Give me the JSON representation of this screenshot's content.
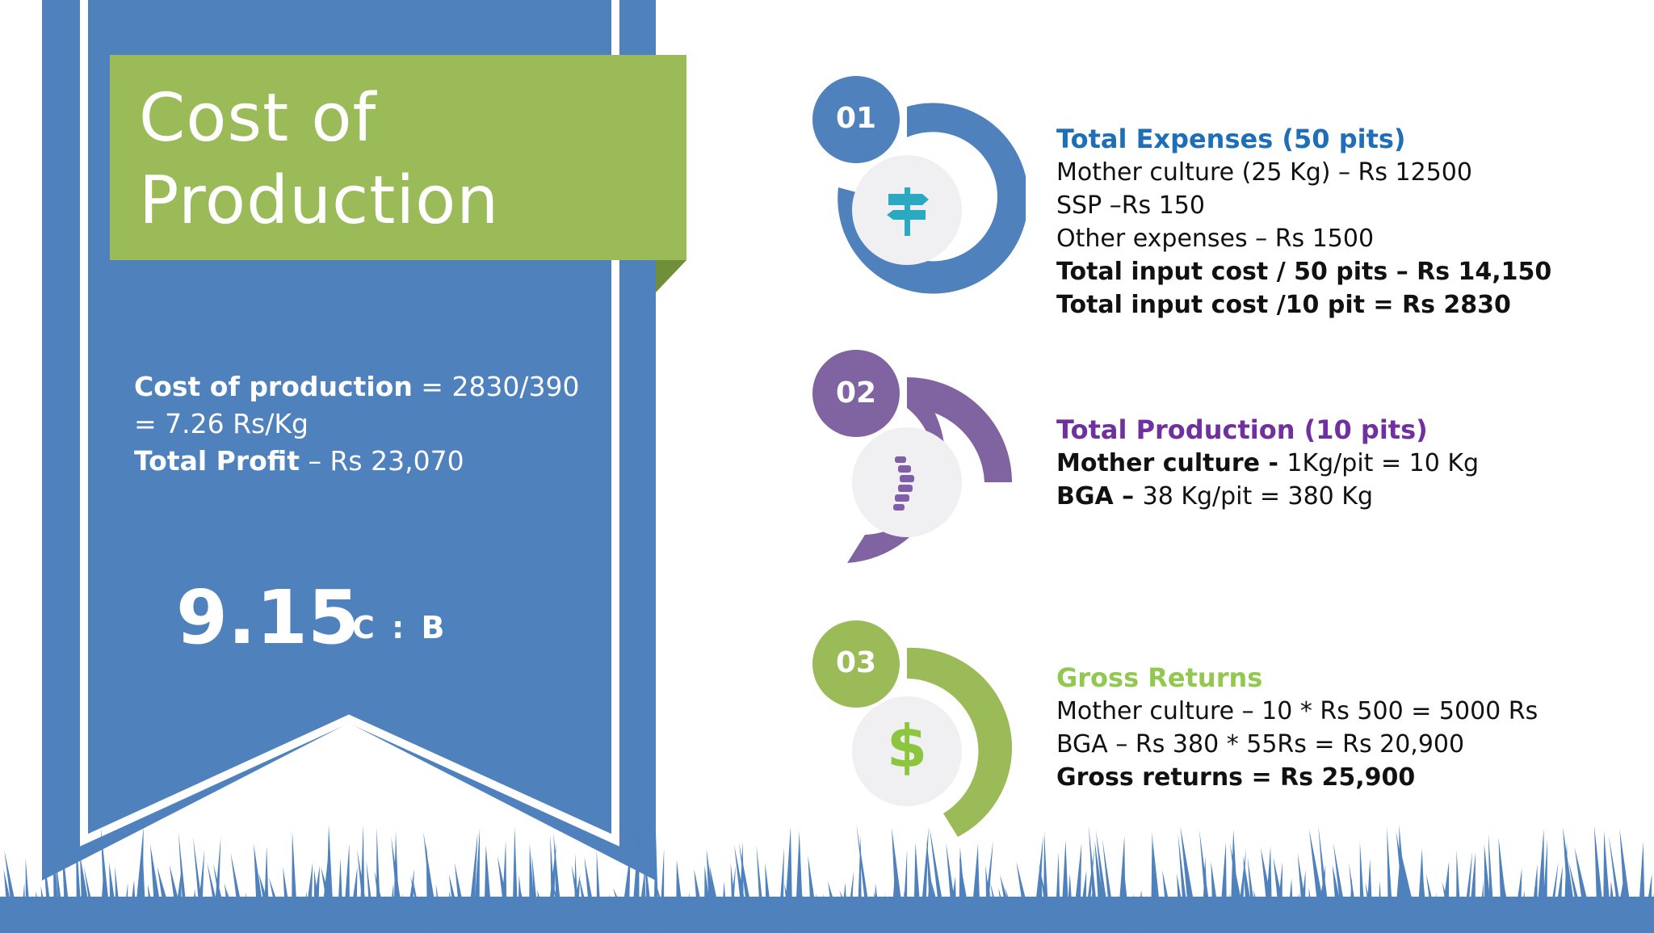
{
  "title": {
    "line1": "Cost of",
    "line2": "Production"
  },
  "summary": {
    "cop_label": "Cost of production",
    "cop_value": " = 2830/390  = 7.26  Rs/Kg",
    "profit_label": "Total Profit",
    "profit_value": " – Rs 23,070"
  },
  "ratio": {
    "value": "9.15",
    "label": "C : B"
  },
  "steps": [
    {
      "number": "01",
      "color": "#4f81bd",
      "icon": "signpost-icon",
      "heading": "Total Expenses (50 pits)",
      "lines": [
        {
          "text": "Mother culture (25 Kg) – Rs  12500"
        },
        {
          "text": "SSP –Rs 150"
        },
        {
          "text": "Other expenses – Rs 1500"
        },
        {
          "text": "Total input cost / 50 pits – Rs  14,150"
        },
        {
          "text": "Total input cost /10 pit = Rs 2830"
        }
      ]
    },
    {
      "number": "02",
      "color": "#8064a2",
      "icon": "spine-icon",
      "heading": "Total Production (10 pits)",
      "lines": [
        {
          "bold": "Mother culture - ",
          "text": "1Kg/pit = 10 Kg"
        },
        {
          "bold": "BGA – ",
          "text": "38 Kg/pit = 380 Kg"
        }
      ]
    },
    {
      "number": "03",
      "color": "#9bbb59",
      "icon": "dollar-icon",
      "dollar_symbol": "$",
      "heading": "Gross Returns",
      "lines": [
        {
          "text": "Mother culture – 10 * Rs 500  = 5000 Rs"
        },
        {
          "text": "BGA – Rs 380 * 55Rs  = Rs 20,900"
        },
        {
          "text": "Gross returns  = Rs 25,900"
        }
      ]
    }
  ],
  "colors": {
    "banner": "#4f81bd",
    "title_box": "#9bbb59",
    "grass": "#4f81bd",
    "heading1": "#1f6fb8",
    "heading2": "#7030a0",
    "heading3": "#92c84f"
  }
}
